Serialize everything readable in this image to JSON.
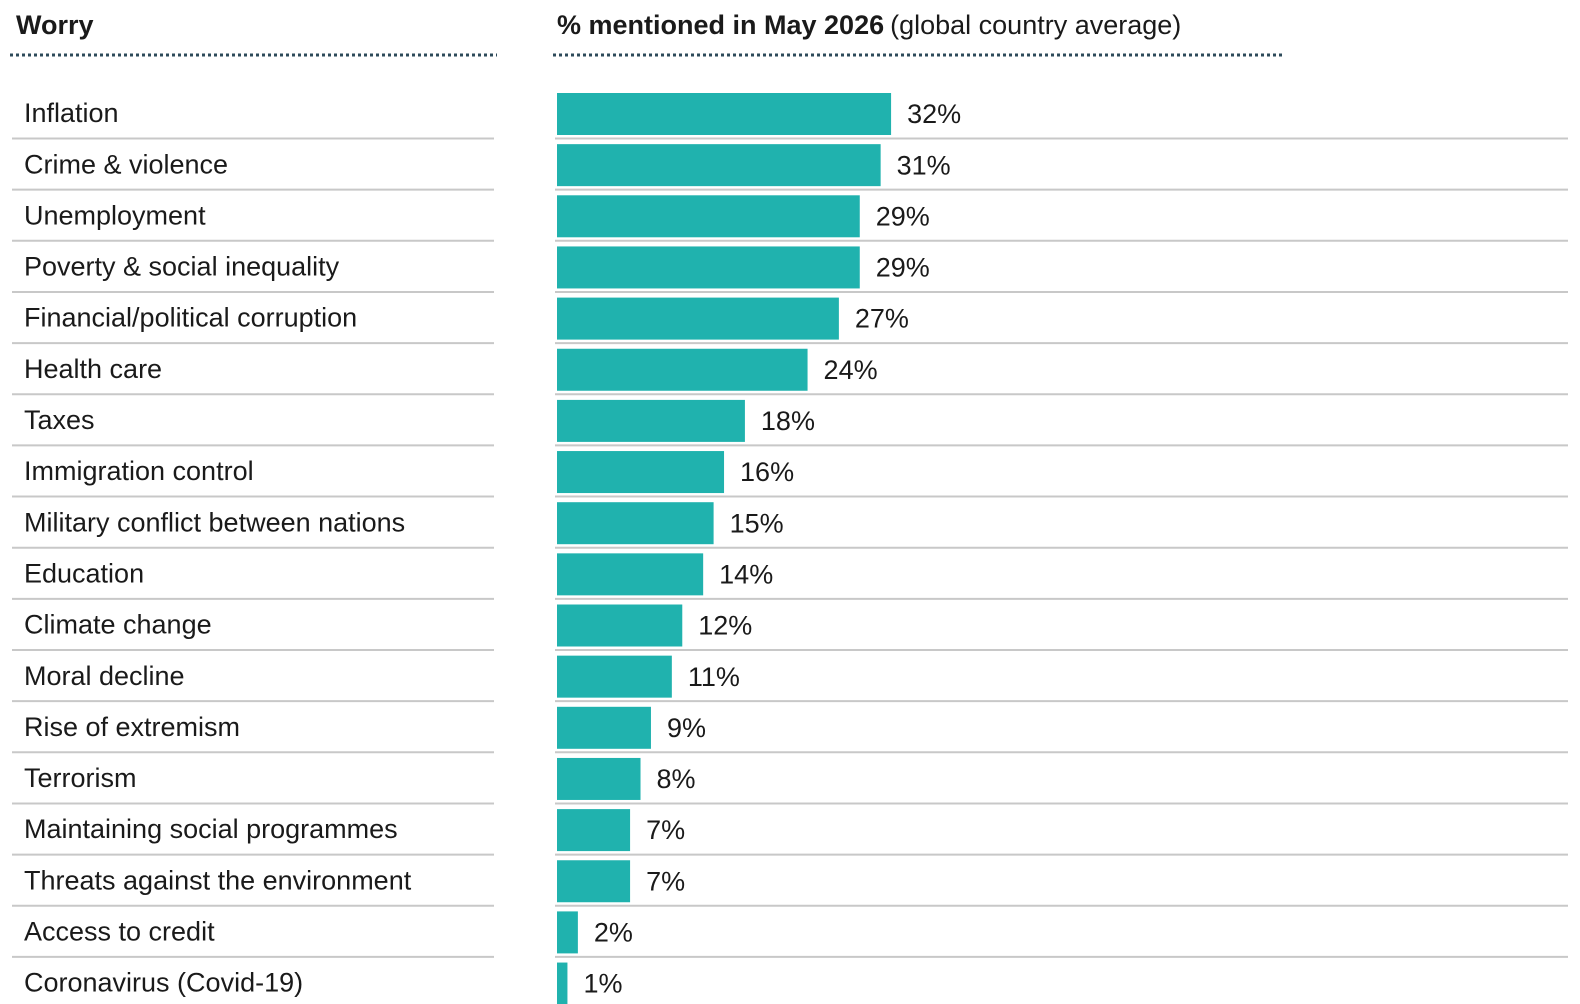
{
  "chart_data": {
    "type": "bar",
    "orientation": "horizontal",
    "category_header": "Worry",
    "title": "% mentioned in May 2026",
    "subtitle": "(global country average)",
    "color": "#20b2ae",
    "categories": [
      "Inflation",
      "Crime & violence",
      "Unemployment",
      "Poverty & social inequality",
      "Financial/political corruption",
      "Health care",
      "Taxes",
      "Immigration control",
      "Military conflict between nations",
      "Education",
      "Climate change",
      "Moral decline",
      "Rise of extremism",
      "Terrorism",
      "Maintaining social programmes",
      "Threats against the environment",
      "Access to credit",
      "Coronavirus (Covid-19)"
    ],
    "values": [
      32,
      31,
      29,
      29,
      27,
      24,
      18,
      16,
      15,
      14,
      12,
      11,
      9,
      8,
      7,
      7,
      2,
      1
    ],
    "value_labels": [
      "32%",
      "31%",
      "29%",
      "29%",
      "27%",
      "24%",
      "18%",
      "16%",
      "15%",
      "14%",
      "12%",
      "11%",
      "9%",
      "8%",
      "7%",
      "7%",
      "2%",
      "1%"
    ]
  }
}
